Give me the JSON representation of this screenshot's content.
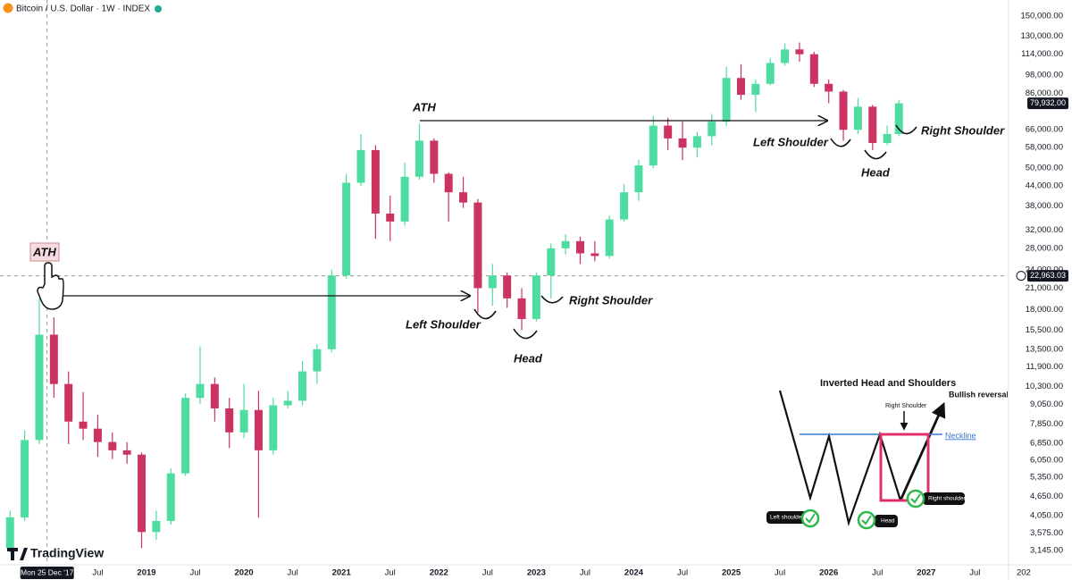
{
  "chart_data": {
    "type": "candlestick",
    "title": "Bitcoin / U.S. Dollar · 1W · INDEX",
    "log_scale": true,
    "grid": false,
    "up_color": "#4fdca0",
    "down_color": "#cc3360",
    "x": [
      2017.6,
      2017.75,
      2017.9,
      2018.05,
      2018.2,
      2018.35,
      2018.5,
      2018.65,
      2018.8,
      2018.95,
      2019.1,
      2019.25,
      2019.4,
      2019.55,
      2019.7,
      2019.85,
      2020.0,
      2020.15,
      2020.3,
      2020.45,
      2020.6,
      2020.75,
      2020.9,
      2021.05,
      2021.2,
      2021.35,
      2021.5,
      2021.65,
      2021.8,
      2021.95,
      2022.1,
      2022.25,
      2022.4,
      2022.55,
      2022.7,
      2022.85,
      2023.0,
      2023.15,
      2023.3,
      2023.45,
      2023.6,
      2023.75,
      2023.9,
      2024.05,
      2024.2,
      2024.35,
      2024.5,
      2024.65,
      2024.8,
      2024.95,
      2025.1,
      2025.25,
      2025.4,
      2025.55,
      2025.7,
      2025.85,
      2026.0,
      2026.15,
      2026.3,
      2026.45,
      2026.6,
      2026.72
    ],
    "open": [
      3200,
      4000,
      7000,
      15000,
      10500,
      8000,
      7600,
      6900,
      6500,
      6300,
      3600,
      3900,
      5500,
      9500,
      10500,
      8800,
      7400,
      8700,
      6500,
      9000,
      9300,
      11500,
      13500,
      23000,
      45000,
      57000,
      36000,
      34000,
      47000,
      61000,
      48000,
      42000,
      39000,
      21000,
      23000,
      19500,
      16800,
      23000,
      28000,
      29500,
      27000,
      26500,
      34500,
      42000,
      51000,
      68000,
      62000,
      58000,
      63000,
      70000,
      96000,
      85000,
      92000,
      107000,
      118000,
      114000,
      92000,
      87000,
      66000,
      78000,
      60000,
      64000
    ],
    "high": [
      4200,
      7500,
      19500,
      17000,
      11500,
      9900,
      8400,
      7400,
      6900,
      6400,
      4200,
      5700,
      9800,
      13800,
      11000,
      9500,
      10500,
      10000,
      9500,
      10000,
      12400,
      14000,
      24000,
      48000,
      64000,
      59000,
      41000,
      52000,
      69000,
      62000,
      48500,
      47000,
      40000,
      25000,
      23500,
      21000,
      23500,
      29000,
      31000,
      30500,
      29500,
      35500,
      44500,
      53000,
      73000,
      72000,
      70000,
      65000,
      74000,
      104000,
      106000,
      95000,
      111000,
      123000,
      124000,
      116000,
      95000,
      88000,
      83000,
      79000,
      68000,
      82000
    ],
    "low": [
      3100,
      3900,
      6800,
      9500,
      6800,
      7000,
      6200,
      6100,
      5900,
      3200,
      3400,
      3800,
      5400,
      9100,
      8000,
      6600,
      7100,
      4000,
      6300,
      8800,
      9000,
      10500,
      13200,
      22500,
      44000,
      30000,
      29500,
      33000,
      46000,
      45000,
      34000,
      37500,
      17600,
      18500,
      18200,
      15500,
      16500,
      19500,
      26800,
      25000,
      25500,
      26000,
      34000,
      39500,
      50000,
      57000,
      53000,
      54000,
      59000,
      68000,
      82000,
      75000,
      91000,
      105000,
      108000,
      90000,
      80000,
      61000,
      64000,
      57000,
      59000,
      63000
    ],
    "close": [
      4000,
      7000,
      15000,
      10500,
      8000,
      7600,
      6900,
      6500,
      6300,
      3600,
      3900,
      5500,
      9500,
      10500,
      8800,
      7400,
      8700,
      6500,
      9000,
      9300,
      11500,
      13500,
      23000,
      45000,
      57000,
      36000,
      34000,
      47000,
      61000,
      48000,
      42000,
      39000,
      21000,
      23000,
      19500,
      16800,
      23000,
      28000,
      29500,
      27000,
      26500,
      34500,
      42000,
      51000,
      68000,
      62000,
      58000,
      63000,
      70000,
      96000,
      85000,
      92000,
      107000,
      118000,
      114000,
      92000,
      87000,
      66000,
      78000,
      60000,
      64000,
      79932
    ],
    "xlim": [
      2017.497,
      2027.836
    ],
    "ylim": [
      2840,
      168700
    ],
    "xticks": [
      {
        "value": 2018.5,
        "label": "Jul"
      },
      2019,
      {
        "value": 2019.5,
        "label": "Jul"
      },
      2020,
      {
        "value": 2020.5,
        "label": "Jul"
      },
      2021,
      {
        "value": 2021.5,
        "label": "Jul"
      },
      2022,
      {
        "value": 2022.5,
        "label": "Jul"
      },
      2023,
      {
        "value": 2023.5,
        "label": "Jul"
      },
      2024,
      {
        "value": 2024.5,
        "label": "Jul"
      },
      2025,
      {
        "value": 2025.5,
        "label": "Jul"
      },
      2026,
      {
        "value": 2026.5,
        "label": "Jul"
      },
      2027,
      {
        "value": 2027.5,
        "label": "Jul"
      },
      {
        "value": 2028,
        "label": "202"
      }
    ],
    "yticks": [
      {
        "value": 150000,
        "label": "150,000.00"
      },
      {
        "value": 130000,
        "label": "130,000.00"
      },
      {
        "value": 114000,
        "label": "114,000.00"
      },
      {
        "value": 98000,
        "label": "98,000.00"
      },
      {
        "value": 86000,
        "label": "86,000.00"
      },
      {
        "value": 66000,
        "label": "66,000.00"
      },
      {
        "value": 58000,
        "label": "58,000.00"
      },
      {
        "value": 50000,
        "label": "50,000.00"
      },
      {
        "value": 44000,
        "label": "44,000.00"
      },
      {
        "value": 38000,
        "label": "38,000.00"
      },
      {
        "value": 32000,
        "label": "32,000.00"
      },
      {
        "value": 28000,
        "label": "28,000.00"
      },
      {
        "value": 24000,
        "label": "24,000.00"
      },
      {
        "value": 21000,
        "label": "21,000.00"
      },
      {
        "value": 18000,
        "label": "18,000.00"
      },
      {
        "value": 15500,
        "label": "15,500.00"
      },
      {
        "value": 13500,
        "label": "13,500.00"
      },
      {
        "value": 11900,
        "label": "11,900.00"
      },
      {
        "value": 10300,
        "label": "10,300.00"
      },
      {
        "value": 9050,
        "label": "9,050.00"
      },
      {
        "value": 7850,
        "label": "7,850.00"
      },
      {
        "value": 6850,
        "label": "6,850.00"
      },
      {
        "value": 6050,
        "label": "6,050.00"
      },
      {
        "value": 5350,
        "label": "5,350.00"
      },
      {
        "value": 4650,
        "label": "4,650.00"
      },
      {
        "value": 4050,
        "label": "4,050.00"
      },
      {
        "value": 3575,
        "label": "3,575.00"
      },
      {
        "value": 3145,
        "label": "3,145.00"
      }
    ],
    "last_price": {
      "value": 79932,
      "label": "79,932.00"
    },
    "crosshair": {
      "x": 2017.98,
      "x_label": "Mon 25 Dec '17",
      "y": {
        "value": 22963.03,
        "label": "22,963.03"
      }
    },
    "annotations": [
      "ATH",
      "ATH",
      "Left Shoulder",
      "Head",
      "Right Shoulder",
      "Left Shoulder",
      "Head",
      "Right Shoulder"
    ],
    "inset": {
      "title": "Inverted Head and Shoulders",
      "bullish": "Bullish reversal",
      "right_shoulder_top": "Right Shoulder",
      "neckline": "Neckline",
      "left_shoulder": "Left shoulder",
      "head": "Head",
      "right_shoulder": "Right shoulder"
    },
    "logo": "TradingView"
  }
}
